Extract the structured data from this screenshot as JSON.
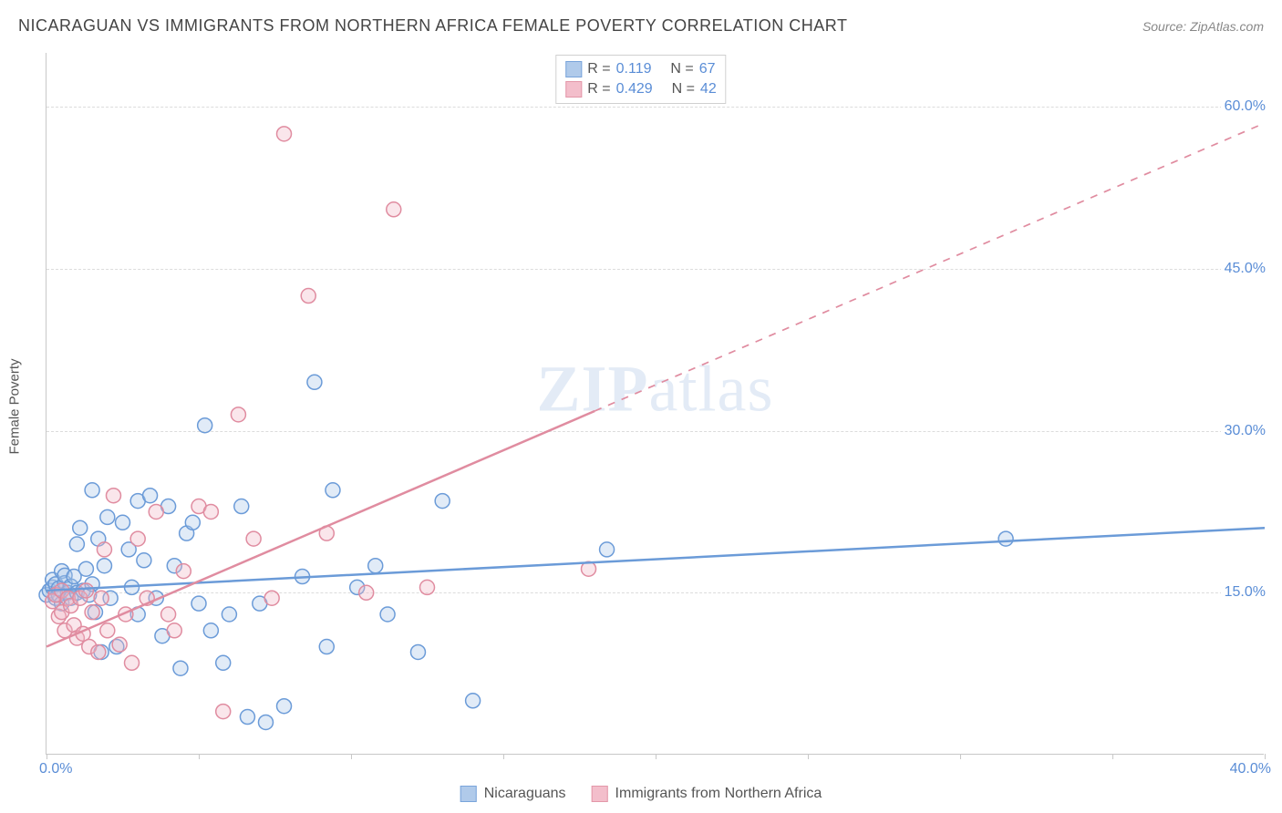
{
  "title": "NICARAGUAN VS IMMIGRANTS FROM NORTHERN AFRICA FEMALE POVERTY CORRELATION CHART",
  "source": "Source: ZipAtlas.com",
  "yaxis_label": "Female Poverty",
  "watermark": {
    "prefix": "ZIP",
    "suffix": "atlas"
  },
  "chart": {
    "type": "scatter",
    "background_color": "#ffffff",
    "grid_color": "#dcdcdc",
    "axis_color": "#c8c8c8",
    "tick_label_color": "#5a8dd6",
    "label_color": "#555555",
    "title_color": "#444444",
    "xlim": [
      0,
      40
    ],
    "ylim": [
      0,
      65
    ],
    "xtick_interval": 5,
    "xaxis_labels": {
      "start": "0.0%",
      "end": "40.0%"
    },
    "yticks": [
      {
        "value": 15,
        "label": "15.0%"
      },
      {
        "value": 30,
        "label": "30.0%"
      },
      {
        "value": 45,
        "label": "45.0%"
      },
      {
        "value": 60,
        "label": "60.0%"
      }
    ],
    "marker": {
      "radius": 8,
      "stroke_width": 1.5,
      "fill_opacity": 0.35
    },
    "line_width": 2.5,
    "series": [
      {
        "id": "nicaraguans",
        "label": "Nicaraguans",
        "color_stroke": "#6b9bd8",
        "color_fill": "#a8c5e8",
        "r_value": "0.119",
        "n_value": "67",
        "trend": {
          "x1": 0,
          "y1": 15.2,
          "x2": 40,
          "y2": 21.0,
          "solid_until_x": 40
        },
        "points": [
          [
            0.0,
            14.8
          ],
          [
            0.1,
            15.2
          ],
          [
            0.2,
            15.5
          ],
          [
            0.2,
            16.2
          ],
          [
            0.3,
            14.5
          ],
          [
            0.3,
            15.8
          ],
          [
            0.4,
            14.8
          ],
          [
            0.4,
            15.4
          ],
          [
            0.5,
            17.0
          ],
          [
            0.5,
            14.0
          ],
          [
            0.6,
            15.9
          ],
          [
            0.6,
            16.6
          ],
          [
            0.7,
            15.0
          ],
          [
            0.8,
            15.6
          ],
          [
            0.8,
            14.5
          ],
          [
            0.9,
            16.5
          ],
          [
            1.0,
            19.5
          ],
          [
            1.0,
            15.0
          ],
          [
            1.1,
            21.0
          ],
          [
            1.2,
            15.2
          ],
          [
            1.3,
            17.2
          ],
          [
            1.4,
            14.8
          ],
          [
            1.5,
            15.8
          ],
          [
            1.5,
            24.5
          ],
          [
            1.6,
            13.2
          ],
          [
            1.7,
            20.0
          ],
          [
            1.8,
            9.5
          ],
          [
            1.9,
            17.5
          ],
          [
            2.0,
            22.0
          ],
          [
            2.1,
            14.5
          ],
          [
            2.3,
            10.0
          ],
          [
            2.5,
            21.5
          ],
          [
            2.7,
            19.0
          ],
          [
            2.8,
            15.5
          ],
          [
            3.0,
            13.0
          ],
          [
            3.0,
            23.5
          ],
          [
            3.2,
            18.0
          ],
          [
            3.4,
            24.0
          ],
          [
            3.6,
            14.5
          ],
          [
            3.8,
            11.0
          ],
          [
            4.0,
            23.0
          ],
          [
            4.2,
            17.5
          ],
          [
            4.4,
            8.0
          ],
          [
            4.6,
            20.5
          ],
          [
            4.8,
            21.5
          ],
          [
            5.0,
            14.0
          ],
          [
            5.2,
            30.5
          ],
          [
            5.4,
            11.5
          ],
          [
            5.8,
            8.5
          ],
          [
            6.0,
            13.0
          ],
          [
            6.4,
            23.0
          ],
          [
            6.6,
            3.5
          ],
          [
            7.0,
            14.0
          ],
          [
            7.2,
            3.0
          ],
          [
            7.8,
            4.5
          ],
          [
            8.4,
            16.5
          ],
          [
            8.8,
            34.5
          ],
          [
            9.2,
            10.0
          ],
          [
            9.4,
            24.5
          ],
          [
            10.2,
            15.5
          ],
          [
            10.8,
            17.5
          ],
          [
            11.2,
            13.0
          ],
          [
            12.2,
            9.5
          ],
          [
            13.0,
            23.5
          ],
          [
            14.0,
            5.0
          ],
          [
            18.4,
            19.0
          ],
          [
            31.5,
            20.0
          ]
        ]
      },
      {
        "id": "northern_africa",
        "label": "Immigrants from Northern Africa",
        "color_stroke": "#e08ca0",
        "color_fill": "#f2b8c6",
        "r_value": "0.429",
        "n_value": "42",
        "trend": {
          "x1": 0,
          "y1": 10.0,
          "x2": 40,
          "y2": 58.5,
          "solid_until_x": 18
        },
        "points": [
          [
            0.2,
            14.2
          ],
          [
            0.3,
            14.8
          ],
          [
            0.4,
            12.8
          ],
          [
            0.5,
            15.2
          ],
          [
            0.5,
            13.2
          ],
          [
            0.6,
            11.5
          ],
          [
            0.7,
            14.5
          ],
          [
            0.8,
            13.8
          ],
          [
            0.9,
            12.0
          ],
          [
            1.0,
            10.8
          ],
          [
            1.1,
            14.5
          ],
          [
            1.2,
            11.2
          ],
          [
            1.3,
            15.2
          ],
          [
            1.4,
            10.0
          ],
          [
            1.5,
            13.2
          ],
          [
            1.7,
            9.5
          ],
          [
            1.8,
            14.5
          ],
          [
            1.9,
            19.0
          ],
          [
            2.0,
            11.5
          ],
          [
            2.2,
            24.0
          ],
          [
            2.4,
            10.2
          ],
          [
            2.6,
            13.0
          ],
          [
            2.8,
            8.5
          ],
          [
            3.0,
            20.0
          ],
          [
            3.3,
            14.5
          ],
          [
            3.6,
            22.5
          ],
          [
            4.0,
            13.0
          ],
          [
            4.2,
            11.5
          ],
          [
            4.5,
            17.0
          ],
          [
            5.0,
            23.0
          ],
          [
            5.4,
            22.5
          ],
          [
            5.8,
            4.0
          ],
          [
            6.3,
            31.5
          ],
          [
            6.8,
            20.0
          ],
          [
            7.4,
            14.5
          ],
          [
            7.8,
            57.5
          ],
          [
            8.6,
            42.5
          ],
          [
            9.2,
            20.5
          ],
          [
            10.5,
            15.0
          ],
          [
            11.4,
            50.5
          ],
          [
            12.5,
            15.5
          ],
          [
            17.8,
            17.2
          ]
        ]
      }
    ]
  },
  "legend_box": {
    "r_label": "R  =",
    "n_label": "N  ="
  }
}
